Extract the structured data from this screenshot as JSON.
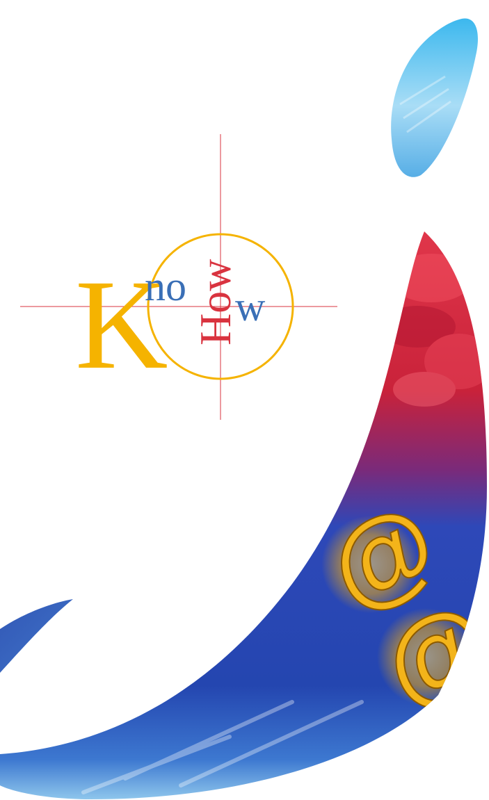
{
  "logo": {
    "letter_k": "K",
    "text_no": "no",
    "text_w": "w",
    "text_how": "How",
    "colors": {
      "k": "#F5B300",
      "no": "#3A6FB6",
      "w": "#3A6FB6",
      "how": "#D9333F",
      "crosshair": "#D9333F",
      "circle": "#F5B300"
    }
  },
  "artwork": {
    "swoosh_top_color": "#D2293A",
    "swoosh_bottom_color": "#2340A8",
    "accent_sky_color": "#6EC8EE",
    "at_symbol": "@",
    "at_symbol_color": "#F3B41A"
  }
}
